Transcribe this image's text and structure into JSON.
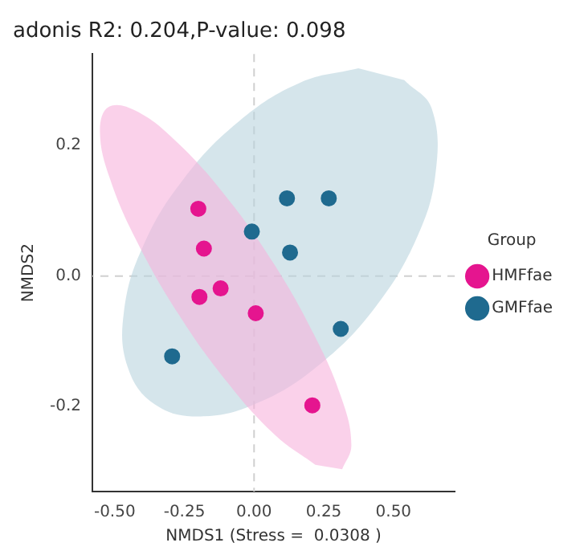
{
  "chart_data": {
    "type": "scatter",
    "title": "adonis R2: 0.204,P-value: 0.098",
    "xlabel": "NMDS1 (Stress =  0.0308 )",
    "ylabel": "NMDS2",
    "legend_title": "Group",
    "legend": "right",
    "grid": false,
    "marker": "circle",
    "xlim": [
      -0.58,
      0.72
    ],
    "ylim": [
      -0.33,
      0.34
    ],
    "xticks": [
      {
        "value": -0.5,
        "label": "-0.50"
      },
      {
        "value": -0.25,
        "label": "-0.25"
      },
      {
        "value": 0,
        "label": "0.00"
      },
      {
        "value": 0.25,
        "label": "0.25"
      },
      {
        "value": 0.5,
        "label": "0.50"
      }
    ],
    "yticks": [
      {
        "value": -0.2,
        "label": "-0.2"
      },
      {
        "value": 0,
        "label": "0.0"
      },
      {
        "value": 0.2,
        "label": "0.2"
      }
    ],
    "ref_lines": [
      {
        "axis": "x",
        "value": 0,
        "color": "#d0d0d0",
        "line_style": "dashed"
      },
      {
        "axis": "y",
        "value": 0,
        "color": "#d0d0d0",
        "line_style": "dashed"
      }
    ],
    "series": [
      {
        "type": "area",
        "marker": "none",
        "color": "#b9d3de",
        "x": [
          0.539,
          0.637,
          0.651,
          0.581,
          0.436,
          0.239,
          0.02,
          -0.19,
          -0.355,
          -0.453,
          -0.467,
          -0.397,
          -0.252,
          -0.054,
          0.165,
          0.374
        ],
        "values": [
          0.3,
          0.257,
          0.157,
          0.056,
          -0.047,
          -0.134,
          -0.193,
          -0.215,
          -0.197,
          -0.14,
          -0.055,
          0.047,
          0.149,
          0.237,
          0.296,
          0.318
        ]
      },
      {
        "type": "area",
        "marker": "none",
        "color": "#f6b3dc",
        "x": [
          0.316,
          0.349,
          0.313,
          0.213,
          0.066,
          -0.107,
          -0.279,
          -0.424,
          -0.521,
          -0.553,
          -0.517,
          -0.418,
          -0.27,
          -0.097,
          0.074,
          0.22
        ],
        "values": [
          -0.296,
          -0.259,
          -0.186,
          -0.088,
          0.022,
          0.125,
          0.206,
          0.253,
          0.259,
          0.222,
          0.149,
          0.051,
          -0.059,
          -0.162,
          -0.243,
          -0.289
        ]
      },
      {
        "name": "HMFfae",
        "color": "#e5158f",
        "x": [
          -0.2,
          -0.18,
          -0.12,
          -0.196,
          0.006,
          0.209
        ],
        "values": [
          0.103,
          0.042,
          -0.019,
          -0.032,
          -0.057,
          -0.198
        ]
      },
      {
        "name": "GMFfae",
        "color": "#1f6a8f",
        "x": [
          0.118,
          0.268,
          -0.008,
          0.129,
          0.311,
          -0.294
        ],
        "values": [
          0.119,
          0.119,
          0.068,
          0.036,
          -0.081,
          -0.123
        ]
      }
    ]
  }
}
